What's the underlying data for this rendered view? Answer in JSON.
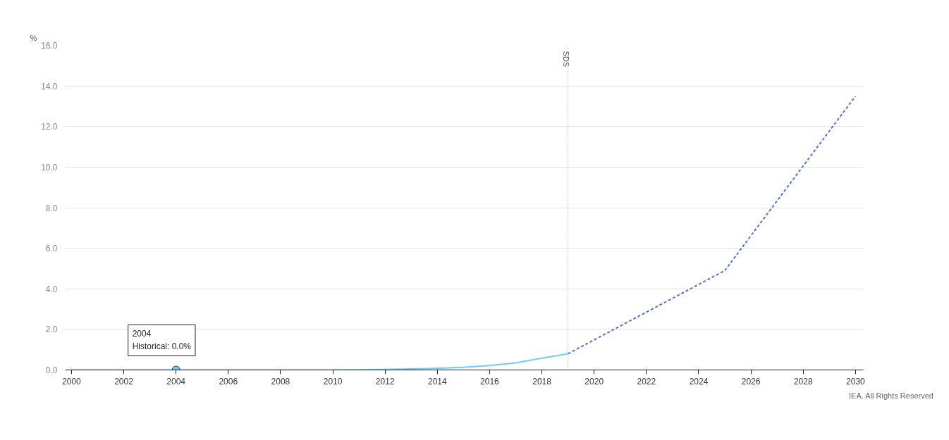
{
  "chart_data": {
    "type": "line",
    "ylabel": "%",
    "series": [
      {
        "color": "#6bcdfc",
        "line_style": "solid",
        "x": [
          2000,
          2001,
          2002,
          2003,
          2004,
          2005,
          2006,
          2007,
          2008,
          2009,
          2010,
          2011,
          2012,
          2013,
          2014,
          2015,
          2016,
          2017,
          2018,
          2019
        ],
        "values": [
          0,
          0,
          0,
          0,
          0,
          0,
          0,
          0,
          0,
          0,
          0,
          0.01,
          0.03,
          0.05,
          0.08,
          0.13,
          0.22,
          0.35,
          0.58,
          0.8
        ]
      },
      {
        "color": "#4f6fd8",
        "line_style": "dashed",
        "x": [
          2019,
          2025,
          2030
        ],
        "values": [
          0.8,
          4.9,
          13.5
        ]
      }
    ],
    "xlim": [
      1999.76,
      2030.3
    ],
    "xticks": [
      2000,
      2002,
      2004,
      2006,
      2008,
      2010,
      2012,
      2014,
      2016,
      2018,
      2020,
      2022,
      2024,
      2026,
      2028,
      2030
    ],
    "ylim": [
      0,
      16
    ],
    "yticks": [
      {
        "value": 0,
        "label": "0.0"
      },
      {
        "value": 2,
        "label": "2.0"
      },
      {
        "value": 4,
        "label": "4.0"
      },
      {
        "value": 6,
        "label": "6.0"
      },
      {
        "value": 8,
        "label": "8.0"
      },
      {
        "value": 10,
        "label": "10.0"
      },
      {
        "value": 12,
        "label": "12.0"
      },
      {
        "value": 14,
        "label": "14.0"
      },
      {
        "value": 16,
        "label": "16.0"
      }
    ],
    "grid": "y",
    "marker": "none",
    "ref_lines": [
      {
        "axis": "x",
        "value": 2019,
        "label": "SDS",
        "color": "#999999",
        "line_style": "dotted"
      }
    ],
    "annotations": [
      {
        "text": "2004\nHistorical: 0.0%",
        "x": 2004,
        "y": 0
      },
      "IEA. All Rights Reserved"
    ]
  }
}
